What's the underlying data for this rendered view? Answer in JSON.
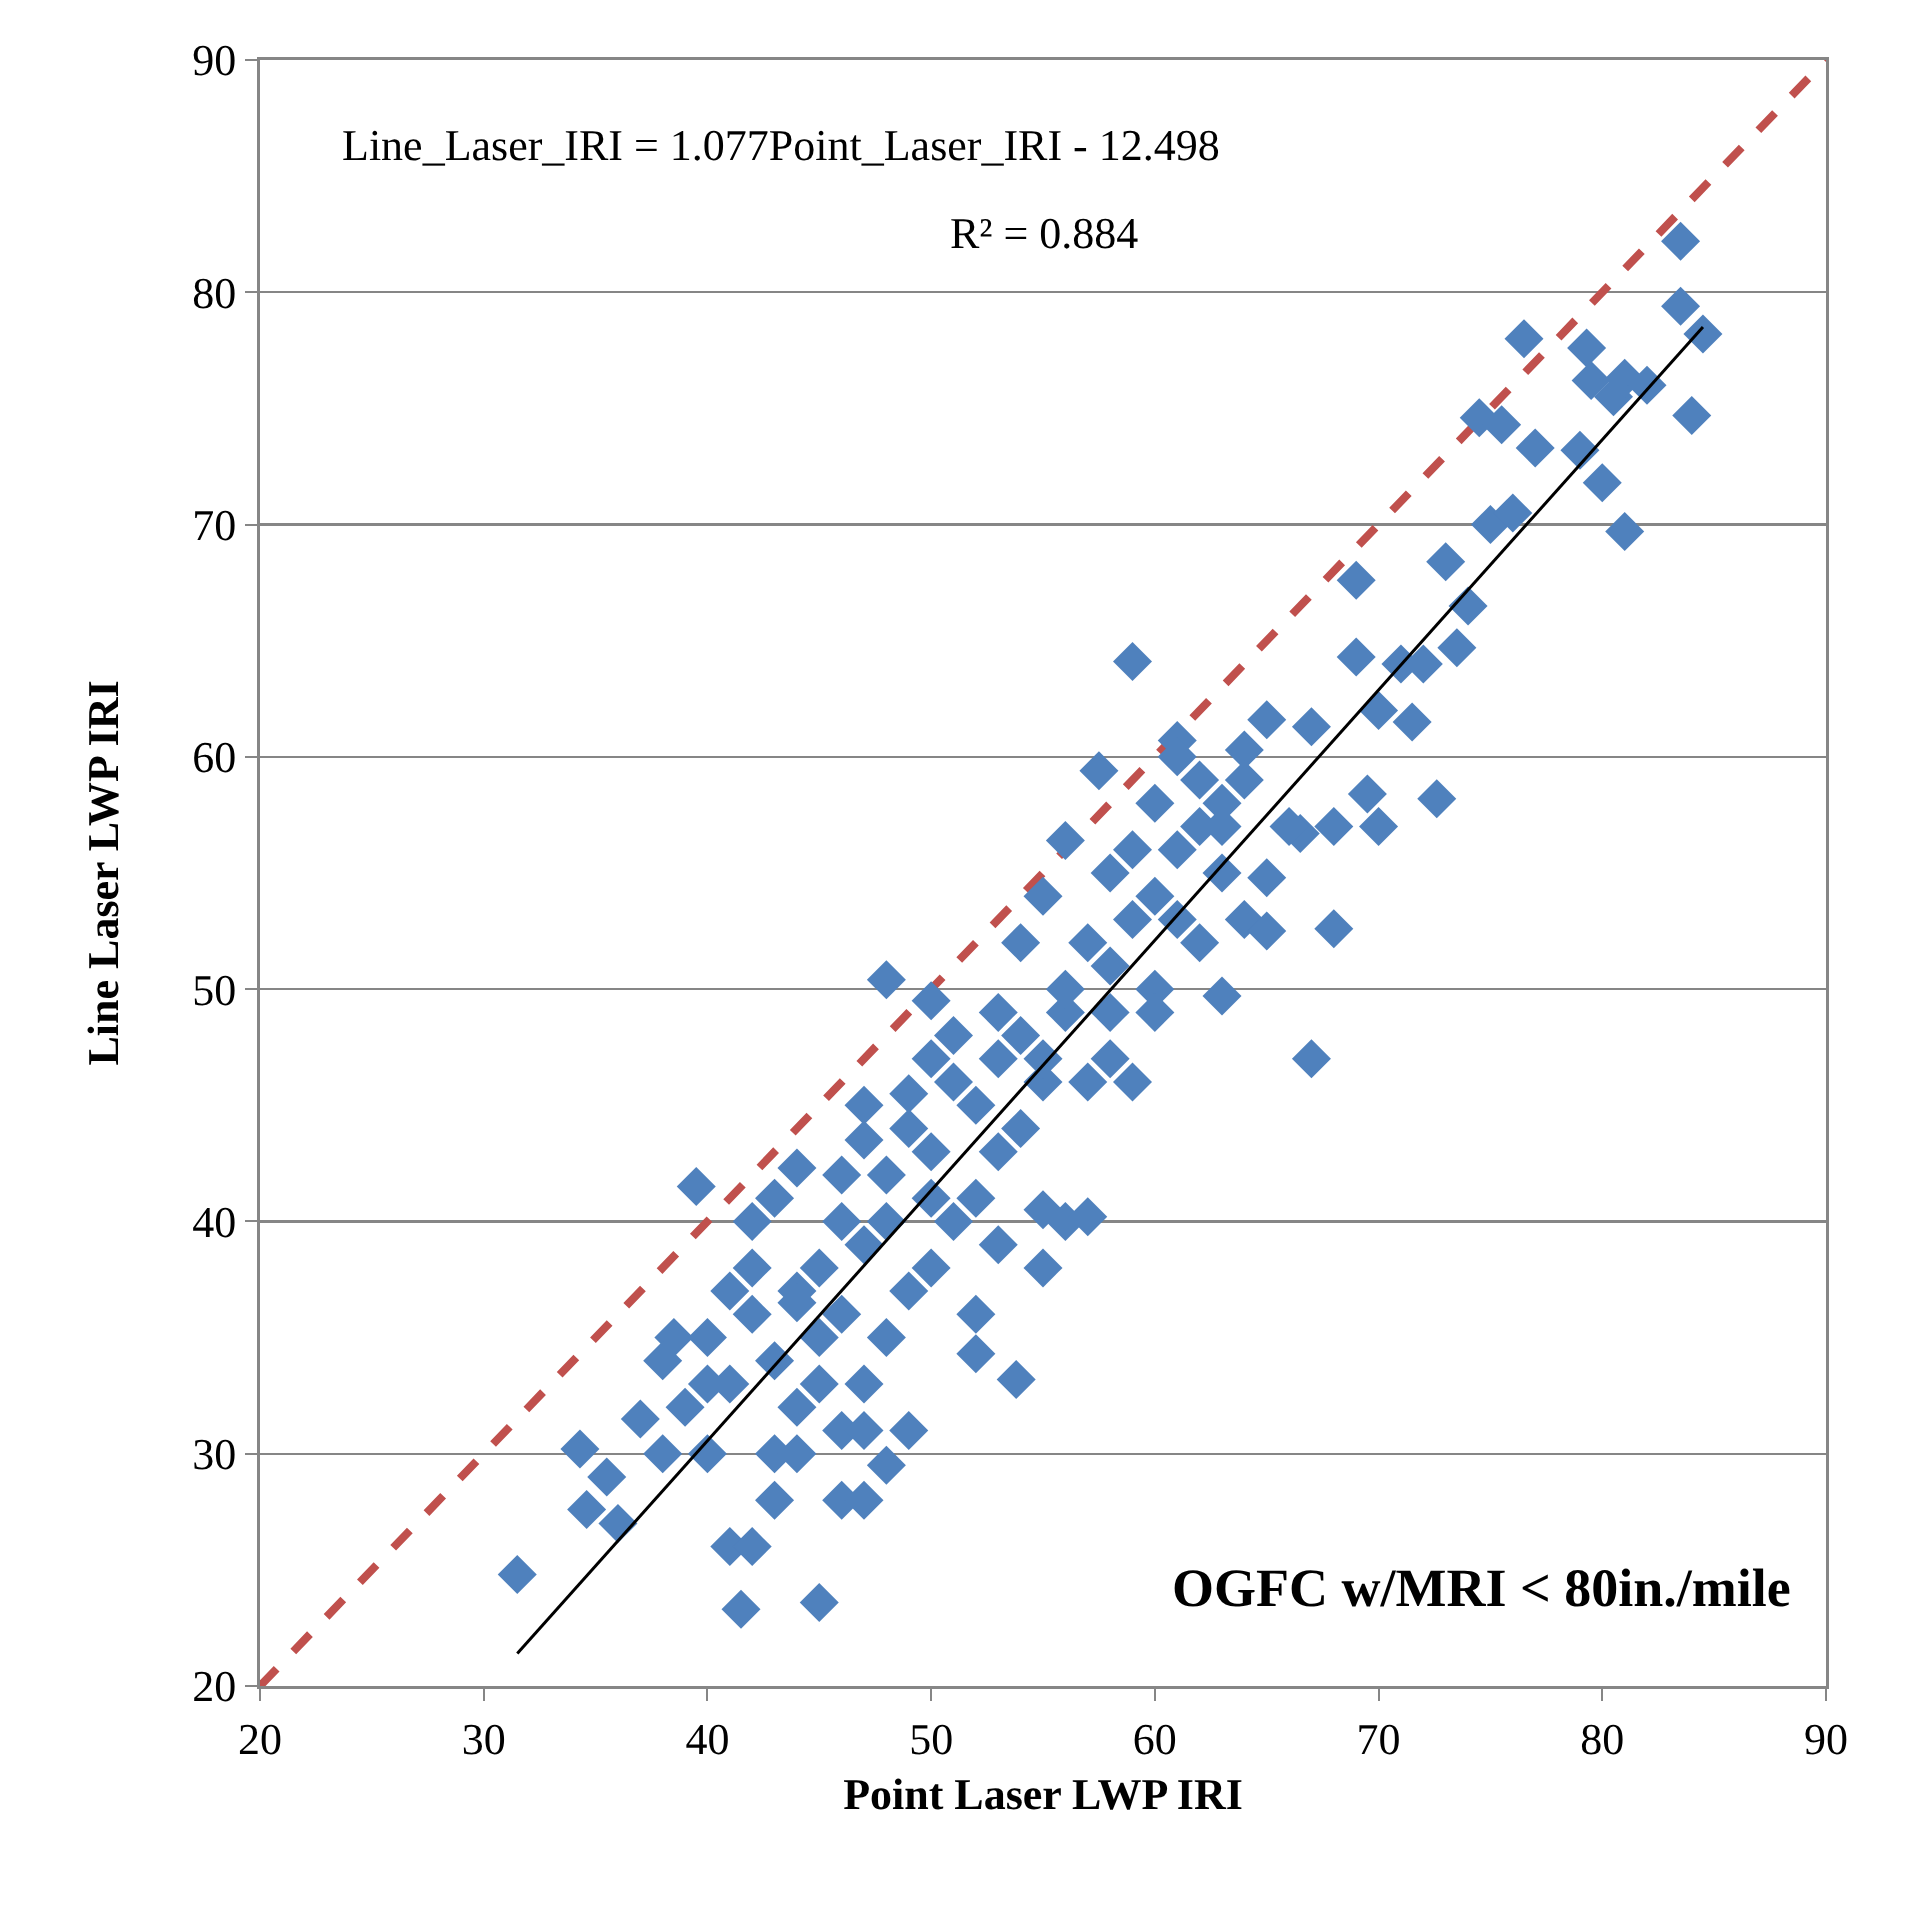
{
  "chart_data": {
    "type": "scatter",
    "xlabel": "Point Laser LWP IRI",
    "ylabel": "Line Laser LWP IRI",
    "xlim": [
      20,
      90
    ],
    "xticks": [
      20,
      30,
      40,
      50,
      60,
      70,
      80,
      90
    ],
    "ylim": [
      20,
      90
    ],
    "yticks": [
      20,
      30,
      40,
      50,
      60,
      70,
      80,
      90
    ],
    "grid": "y",
    "annotations": [
      "Line_Laser_IRI = 1.077Point_Laser_IRI - 12.498",
      "R² = 0.884",
      "OGFC w/MRI < 80in./mile"
    ],
    "series": [
      {
        "type": "line",
        "color": "#c0504d",
        "line_style": "dashed",
        "marker": "none",
        "x": [
          20,
          90
        ],
        "values": [
          20,
          90
        ]
      },
      {
        "color": "#4f81bd",
        "marker": "diamond",
        "x": [
          31.5,
          34.3,
          34.6,
          35.5,
          36,
          37,
          38,
          38.5,
          39.5,
          40,
          41,
          41.5,
          42,
          42,
          43,
          44,
          45,
          46,
          47,
          47,
          48,
          49,
          50,
          52,
          53,
          53.8,
          55,
          56,
          57,
          56,
          57.5,
          59,
          59,
          58,
          60,
          61,
          62,
          63,
          64,
          65,
          65,
          66.5,
          67,
          67,
          68,
          69,
          69,
          69.5,
          70,
          71,
          71.5,
          72.6,
          73,
          73.5,
          74,
          74.5,
          75,
          75.5,
          76,
          76.5,
          77,
          79,
          79.3,
          79.5,
          80,
          80.5,
          81,
          81,
          82,
          83.5,
          83.5,
          84,
          84.5,
          40,
          41,
          42,
          43,
          44,
          45,
          46,
          47,
          48,
          49,
          50,
          51,
          52,
          53,
          54,
          55,
          56,
          57,
          58,
          59,
          60,
          61,
          62,
          63,
          43,
          44,
          45,
          46,
          47,
          48,
          49,
          50,
          51,
          52,
          53,
          54,
          55,
          56,
          57,
          58,
          59,
          60,
          61,
          62,
          63,
          64,
          65,
          66,
          68,
          70,
          72,
          42,
          44,
          46,
          47,
          49,
          50,
          51,
          53,
          54,
          55,
          40,
          39,
          38,
          41,
          45,
          46,
          48,
          50,
          52,
          55,
          58,
          60,
          61,
          63,
          64,
          47,
          48,
          44,
          43
        ],
        "values": [
          24.8,
          30.2,
          27.6,
          29,
          27,
          31.5,
          30,
          35,
          41.5,
          33,
          26,
          23.3,
          26,
          40,
          41,
          42.3,
          23.6,
          28,
          28,
          45,
          50.4,
          31,
          49.5,
          34.3,
          39,
          33.2,
          38,
          40,
          40.2,
          56.4,
          59.4,
          64.1,
          46,
          47,
          50,
          60.7,
          52,
          49.7,
          60.3,
          61.6,
          54.8,
          56.7,
          47,
          61.3,
          52.6,
          67.6,
          64.3,
          58.4,
          57,
          64,
          61.5,
          58.2,
          68.4,
          64.7,
          66.5,
          74.6,
          70,
          74.3,
          70.5,
          78,
          73.3,
          73.2,
          77.6,
          76.2,
          71.8,
          75.5,
          76.3,
          69.7,
          76,
          82.2,
          79.4,
          74.7,
          78.2,
          35,
          33,
          36,
          34,
          37,
          38,
          36,
          39,
          42,
          44,
          43,
          46,
          45,
          47,
          48,
          46,
          49,
          52,
          55,
          56,
          58,
          56,
          59,
          57,
          30,
          32,
          33,
          31,
          33,
          35,
          37,
          38,
          40,
          41,
          43,
          44,
          47,
          50,
          46,
          49,
          53,
          54,
          53,
          57,
          55,
          53,
          52.5,
          57,
          57,
          62,
          64,
          38,
          36.5,
          42,
          43.5,
          45.5,
          47,
          48,
          49,
          52,
          54,
          30,
          32,
          34,
          37,
          35,
          40,
          40,
          41,
          36,
          40.5,
          51,
          49,
          60,
          58,
          59,
          31,
          29.5,
          30,
          28
        ]
      },
      {
        "type": "line",
        "color": "#000000",
        "line_style": "solid",
        "marker": "none",
        "x": [
          31.5,
          84.5
        ],
        "values": [
          21.4,
          78.5
        ]
      }
    ]
  }
}
